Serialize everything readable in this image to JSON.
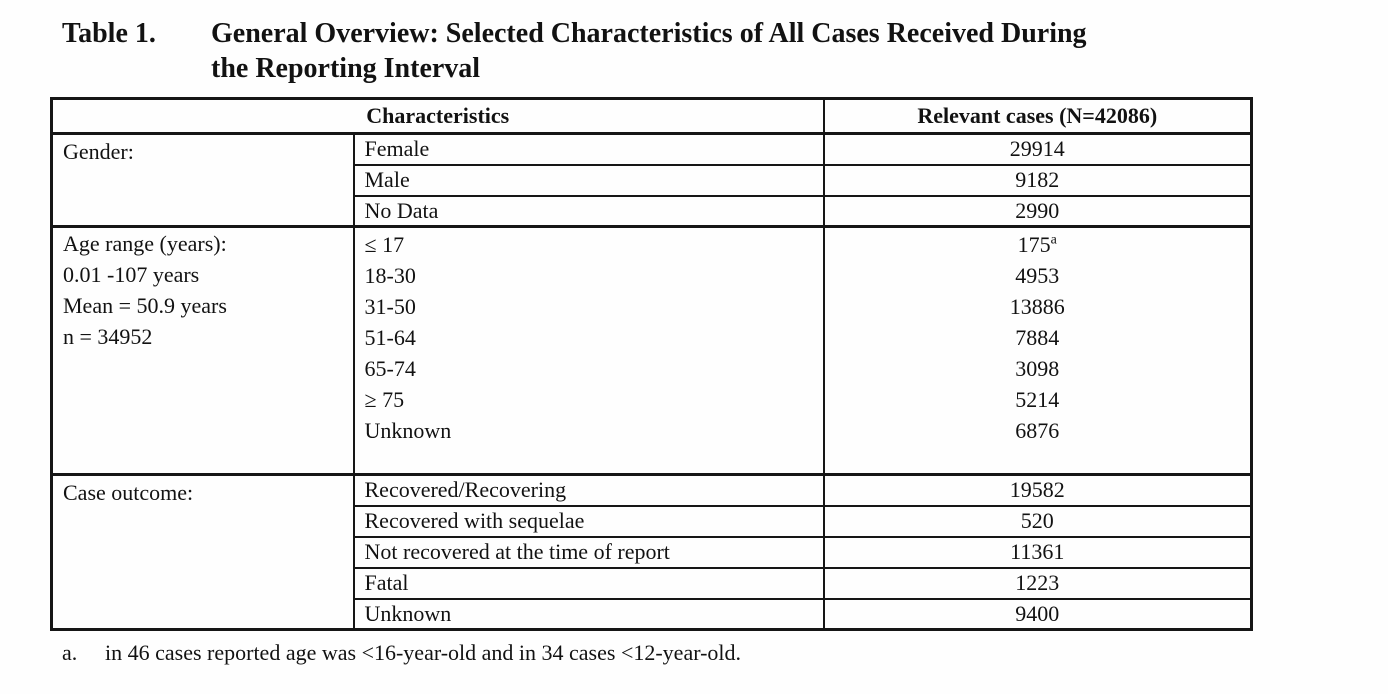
{
  "title": {
    "label": "Table 1.",
    "text": "General Overview: Selected Characteristics of All Cases Received During\nthe Reporting Interval"
  },
  "table": {
    "header": {
      "characteristics": "Characteristics",
      "relevant_cases": "Relevant cases (N=42086)"
    },
    "gender": {
      "label": "Gender:",
      "rows": [
        {
          "characteristic": "Female",
          "value": "29914"
        },
        {
          "characteristic": "Male",
          "value": "9182"
        },
        {
          "characteristic": "No Data",
          "value": "2990"
        }
      ]
    },
    "age": {
      "label_lines": [
        "Age range (years):",
        "0.01 -107 years",
        "Mean = 50.9 years",
        "n = 34952"
      ],
      "rows": [
        {
          "characteristic": "≤ 17",
          "value": "175",
          "sup": "a"
        },
        {
          "characteristic": "18-30",
          "value": "4953"
        },
        {
          "characteristic": "31-50",
          "value": "13886"
        },
        {
          "characteristic": "51-64",
          "value": "7884"
        },
        {
          "characteristic": "65-74",
          "value": "3098"
        },
        {
          "characteristic": "≥ 75",
          "value": "5214"
        },
        {
          "characteristic": "Unknown",
          "value": "6876"
        }
      ]
    },
    "outcome": {
      "label": "Case outcome:",
      "rows": [
        {
          "characteristic": "Recovered/Recovering",
          "value": "19582"
        },
        {
          "characteristic": "Recovered with sequelae",
          "value": "520"
        },
        {
          "characteristic": "Not recovered at the time of report",
          "value": "11361"
        },
        {
          "characteristic": "Fatal",
          "value": "1223"
        },
        {
          "characteristic": "Unknown",
          "value": "9400"
        }
      ]
    }
  },
  "footnote": {
    "marker": "a.",
    "text": "in 46 cases reported age was <16-year-old and in 34 cases <12-year-old."
  },
  "colors": {
    "background": "#fefefe",
    "text": "#121212",
    "border": "#161616"
  }
}
